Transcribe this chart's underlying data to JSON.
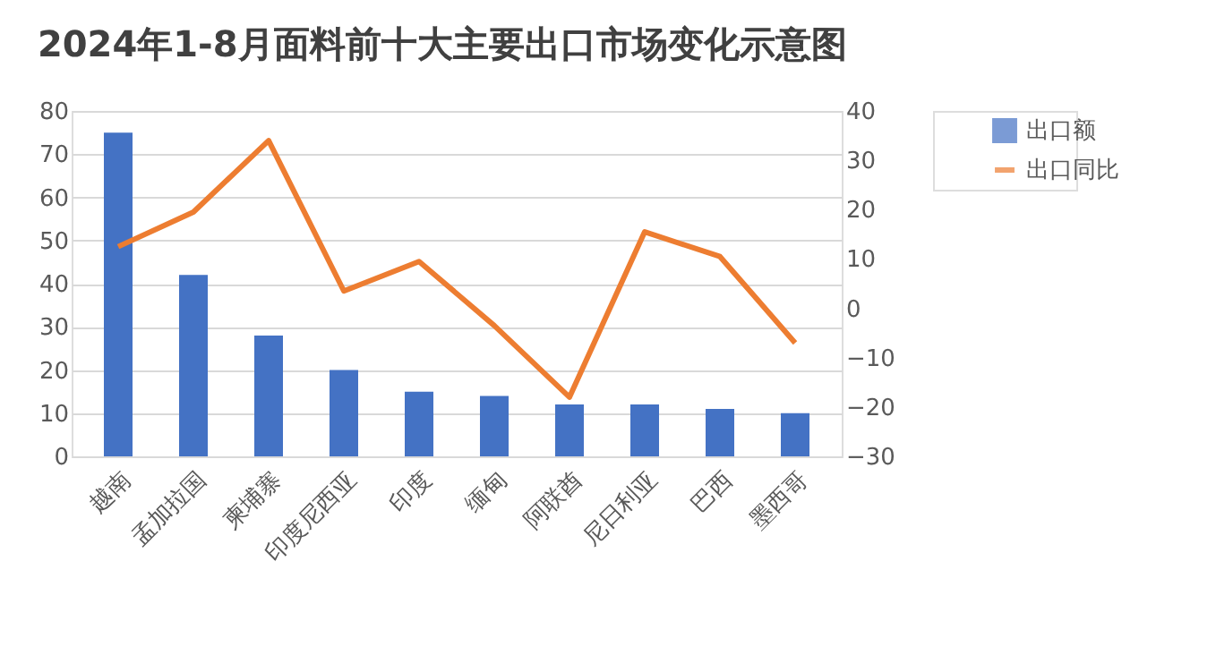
{
  "chart_data": {
    "type": "bar",
    "title": "2024年1-8月面料前十大主要出口市场变化示意图",
    "categories": [
      "越南",
      "孟加拉国",
      "柬埔寨",
      "印度尼西亚",
      "印度",
      "缅甸",
      "阿联酋",
      "尼日利亚",
      "巴西",
      "墨西哥"
    ],
    "series": [
      {
        "name": "出口额",
        "color": "#4472c4",
        "values": [
          75,
          42,
          28,
          20,
          15,
          14,
          12,
          12,
          11,
          10
        ]
      },
      {
        "name": "出口同比",
        "type": "line",
        "axis": "y2",
        "color": "#ed7d31",
        "values": [
          12.5,
          19.5,
          34,
          3.5,
          9.5,
          -3.5,
          -18,
          15.5,
          10.5,
          -7
        ]
      }
    ],
    "ylim": [
      0,
      80
    ],
    "yticks": [
      0,
      10,
      20,
      30,
      40,
      50,
      60,
      70,
      80
    ],
    "y2lim": [
      -30,
      40
    ],
    "y2ticks": [
      -30,
      -20,
      -10,
      0,
      10,
      20,
      30,
      40
    ],
    "grid": "y",
    "legend": "right",
    "line_style": "solid"
  }
}
